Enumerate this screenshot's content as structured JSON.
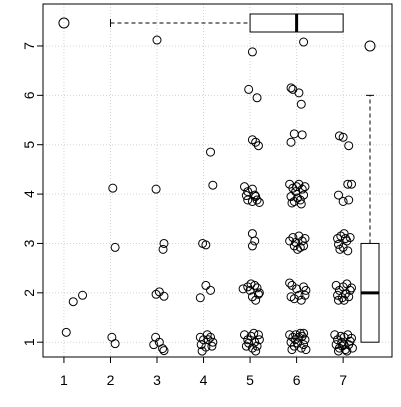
{
  "chart_data": {
    "type": "scatter",
    "title": "",
    "xlabel": "",
    "ylabel": "",
    "x_ticks": [
      "1",
      "2",
      "3",
      "4",
      "5",
      "6",
      "7"
    ],
    "y_ticks": [
      "1",
      "2",
      "3",
      "4",
      "5",
      "6",
      "7"
    ],
    "xlim": [
      0.55,
      8.05
    ],
    "ylim": [
      0.7,
      7.85
    ],
    "grid": true,
    "marginal_boxplots": {
      "x": {
        "min": 2,
        "q1": 5,
        "median": 6,
        "q3": 7,
        "max": 7,
        "outliers": [
          1
        ]
      },
      "y": {
        "min": 1,
        "q1": 1,
        "median": 2,
        "q3": 3,
        "max": 6,
        "outliers": [
          7
        ]
      }
    },
    "points": [
      [
        1.05,
        1.2
      ],
      [
        1.2,
        1.82
      ],
      [
        1.4,
        1.95
      ],
      [
        2.05,
        4.12
      ],
      [
        2.1,
        2.92
      ],
      [
        2.03,
        1.1
      ],
      [
        2.1,
        0.97
      ],
      [
        3.0,
        7.12
      ],
      [
        2.98,
        4.1
      ],
      [
        3.15,
        3.0
      ],
      [
        3.13,
        2.88
      ],
      [
        2.98,
        1.97
      ],
      [
        3.05,
        2.02
      ],
      [
        3.15,
        1.93
      ],
      [
        2.97,
        1.1
      ],
      [
        3.05,
        1.0
      ],
      [
        3.12,
        0.87
      ],
      [
        3.15,
        0.83
      ],
      [
        2.93,
        0.95
      ],
      [
        4.15,
        4.85
      ],
      [
        4.2,
        4.18
      ],
      [
        3.98,
        3.0
      ],
      [
        4.05,
        2.97
      ],
      [
        4.05,
        2.15
      ],
      [
        4.15,
        2.05
      ],
      [
        3.93,
        1.9
      ],
      [
        3.93,
        1.1
      ],
      [
        4.0,
        1.05
      ],
      [
        4.08,
        1.15
      ],
      [
        4.15,
        1.1
      ],
      [
        4.2,
        1.0
      ],
      [
        3.95,
        0.95
      ],
      [
        4.05,
        0.9
      ],
      [
        3.97,
        0.82
      ],
      [
        4.18,
        0.92
      ],
      [
        4.1,
        1.05
      ],
      [
        5.05,
        6.88
      ],
      [
        4.97,
        6.12
      ],
      [
        5.15,
        5.95
      ],
      [
        5.05,
        5.1
      ],
      [
        5.12,
        5.05
      ],
      [
        5.18,
        4.98
      ],
      [
        4.88,
        4.15
      ],
      [
        4.95,
        4.05
      ],
      [
        5.05,
        4.1
      ],
      [
        5.12,
        3.95
      ],
      [
        4.95,
        3.88
      ],
      [
        5.05,
        3.85
      ],
      [
        5.15,
        3.88
      ],
      [
        5.2,
        3.83
      ],
      [
        5.1,
        3.98
      ],
      [
        4.92,
        3.97
      ],
      [
        5.05,
        3.2
      ],
      [
        5.1,
        3.05
      ],
      [
        5.05,
        2.95
      ],
      [
        4.85,
        2.08
      ],
      [
        4.95,
        2.12
      ],
      [
        5.0,
        2.05
      ],
      [
        5.1,
        2.15
      ],
      [
        5.15,
        2.1
      ],
      [
        5.2,
        2.0
      ],
      [
        5.05,
        1.92
      ],
      [
        5.12,
        1.85
      ],
      [
        5.18,
        1.97
      ],
      [
        5.02,
        2.18
      ],
      [
        4.88,
        1.15
      ],
      [
        4.95,
        1.05
      ],
      [
        5.02,
        1.12
      ],
      [
        5.1,
        1.0
      ],
      [
        5.18,
        1.15
      ],
      [
        4.92,
        0.92
      ],
      [
        5.05,
        0.88
      ],
      [
        5.12,
        0.82
      ],
      [
        5.2,
        1.05
      ],
      [
        4.97,
        0.98
      ],
      [
        5.15,
        0.92
      ],
      [
        5.08,
        1.18
      ],
      [
        6.15,
        7.08
      ],
      [
        5.88,
        6.15
      ],
      [
        5.92,
        6.12
      ],
      [
        6.05,
        6.05
      ],
      [
        6.1,
        5.82
      ],
      [
        5.95,
        5.22
      ],
      [
        6.12,
        5.2
      ],
      [
        5.88,
        5.05
      ],
      [
        5.85,
        4.2
      ],
      [
        5.92,
        4.12
      ],
      [
        5.98,
        4.05
      ],
      [
        6.05,
        4.2
      ],
      [
        6.12,
        4.1
      ],
      [
        6.18,
        4.15
      ],
      [
        5.88,
        3.95
      ],
      [
        5.95,
        3.85
      ],
      [
        6.02,
        3.92
      ],
      [
        6.08,
        3.88
      ],
      [
        6.15,
        3.98
      ],
      [
        5.9,
        3.82
      ],
      [
        6.1,
        3.8
      ],
      [
        6.0,
        4.15
      ],
      [
        5.85,
        3.05
      ],
      [
        5.92,
        3.12
      ],
      [
        6.05,
        3.15
      ],
      [
        6.12,
        3.05
      ],
      [
        6.18,
        3.1
      ],
      [
        5.95,
        2.95
      ],
      [
        6.08,
        2.92
      ],
      [
        6.15,
        2.95
      ],
      [
        5.98,
        3.02
      ],
      [
        6.02,
        2.88
      ],
      [
        5.85,
        2.2
      ],
      [
        5.9,
        2.15
      ],
      [
        6.0,
        2.08
      ],
      [
        6.15,
        2.12
      ],
      [
        6.2,
        2.05
      ],
      [
        5.95,
        1.88
      ],
      [
        6.1,
        1.85
      ],
      [
        6.05,
        1.95
      ],
      [
        5.88,
        1.92
      ],
      [
        6.18,
        1.95
      ],
      [
        5.85,
        1.15
      ],
      [
        5.92,
        1.1
      ],
      [
        5.98,
        1.15
      ],
      [
        6.05,
        1.1
      ],
      [
        6.12,
        1.12
      ],
      [
        6.18,
        1.05
      ],
      [
        5.88,
        1.0
      ],
      [
        5.95,
        0.92
      ],
      [
        6.02,
        0.98
      ],
      [
        6.1,
        0.88
      ],
      [
        6.15,
        0.95
      ],
      [
        6.2,
        0.85
      ],
      [
        5.9,
        0.85
      ],
      [
        6.08,
        1.18
      ],
      [
        5.97,
        1.05
      ],
      [
        6.15,
        1.18
      ],
      [
        6.92,
        5.18
      ],
      [
        7.0,
        5.15
      ],
      [
        7.12,
        4.98
      ],
      [
        6.9,
        3.98
      ],
      [
        7.0,
        3.85
      ],
      [
        7.1,
        4.2
      ],
      [
        7.18,
        4.2
      ],
      [
        7.12,
        3.88
      ],
      [
        6.88,
        3.1
      ],
      [
        6.95,
        3.15
      ],
      [
        7.02,
        3.2
      ],
      [
        7.08,
        3.05
      ],
      [
        7.15,
        3.12
      ],
      [
        6.9,
        2.98
      ],
      [
        7.0,
        2.92
      ],
      [
        7.1,
        2.85
      ],
      [
        6.93,
        2.88
      ],
      [
        7.05,
        3.1
      ],
      [
        6.85,
        2.15
      ],
      [
        6.92,
        2.05
      ],
      [
        7.0,
        2.12
      ],
      [
        7.08,
        2.18
      ],
      [
        7.15,
        2.05
      ],
      [
        6.88,
        1.95
      ],
      [
        6.98,
        1.9
      ],
      [
        7.05,
        1.98
      ],
      [
        7.12,
        1.92
      ],
      [
        6.9,
        1.85
      ],
      [
        7.18,
        2.1
      ],
      [
        7.02,
        1.85
      ],
      [
        6.82,
        1.15
      ],
      [
        6.88,
        1.05
      ],
      [
        6.95,
        1.12
      ],
      [
        7.02,
        1.1
      ],
      [
        7.1,
        1.15
      ],
      [
        7.18,
        1.08
      ],
      [
        6.85,
        0.95
      ],
      [
        6.92,
        0.88
      ],
      [
        6.98,
        0.92
      ],
      [
        7.05,
        0.85
      ],
      [
        7.12,
        0.95
      ],
      [
        7.2,
        0.88
      ],
      [
        6.9,
        0.82
      ],
      [
        7.08,
        0.82
      ],
      [
        7.15,
        1.02
      ],
      [
        6.97,
        1.0
      ],
      [
        7.02,
        0.95
      ]
    ]
  }
}
